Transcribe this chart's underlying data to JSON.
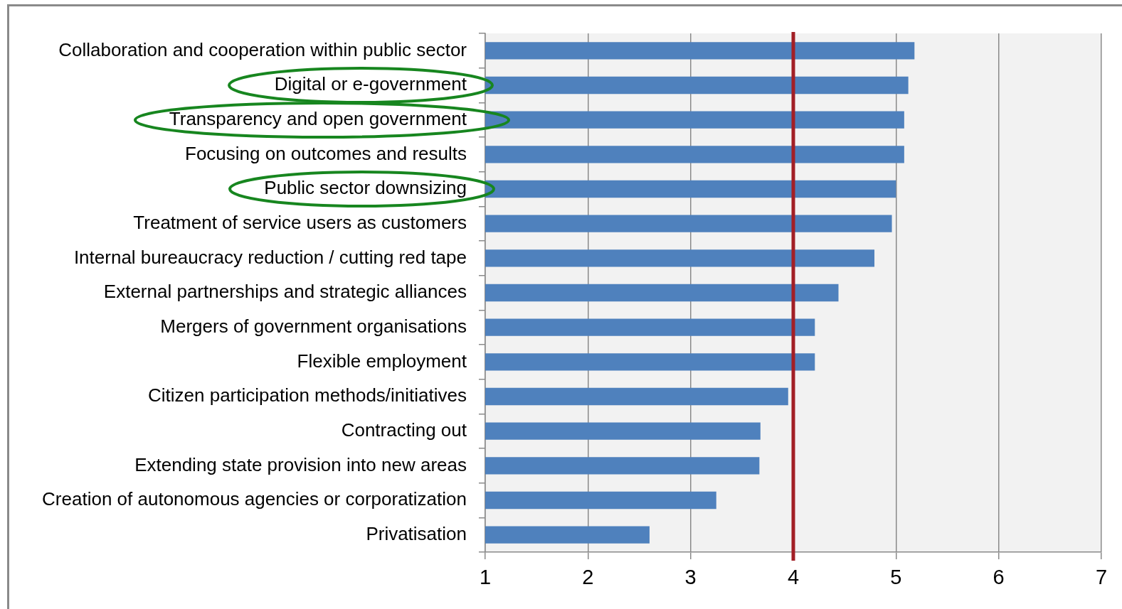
{
  "chart_data": {
    "type": "bar",
    "orientation": "horizontal",
    "categories": [
      "Collaboration and cooperation within public sector",
      "Digital or e-government",
      "Transparency and open government",
      "Focusing on outcomes and results",
      "Public sector downsizing",
      "Treatment of service users as customers",
      "Internal bureaucracy reduction / cutting red tape",
      "External partnerships and strategic alliances",
      "Mergers of government organisations",
      "Flexible employment",
      "Citizen participation methods/initiatives",
      "Contracting out",
      "Extending state provision into new areas",
      "Creation of autonomous agencies or corporatization",
      "Privatisation"
    ],
    "values": [
      5.18,
      5.12,
      5.08,
      5.08,
      5.0,
      4.96,
      4.79,
      4.44,
      4.21,
      4.21,
      3.95,
      3.68,
      3.67,
      3.25,
      2.6
    ],
    "color": "#4f81bd",
    "xlim": [
      1,
      7
    ],
    "xticks": [
      1,
      2,
      3,
      4,
      5,
      6,
      7
    ],
    "grid": "x",
    "ref_lines": [
      {
        "axis": "x",
        "value": 4,
        "color": "#a21f26"
      }
    ]
  }
}
